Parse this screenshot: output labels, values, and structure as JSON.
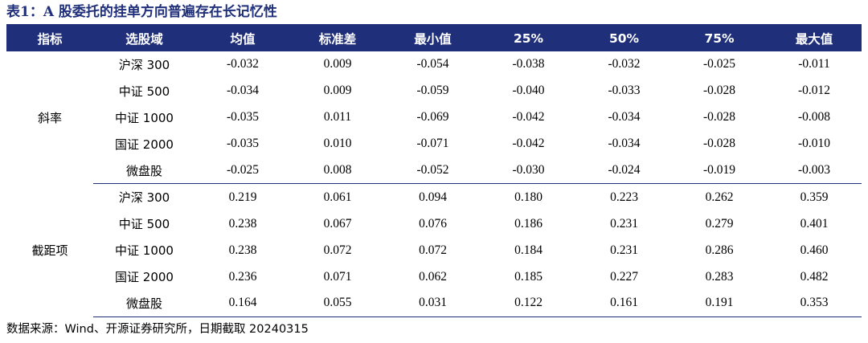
{
  "title": "表1：A 股委托的挂单方向普遍存在长记忆性",
  "columns": [
    "指标",
    "选股域",
    "均值",
    "标准差",
    "最小值",
    "25%",
    "50%",
    "75%",
    "最大值"
  ],
  "groups": [
    {
      "label": "斜率",
      "rows": [
        {
          "pool": "沪深 300",
          "values": [
            "-0.032",
            "0.009",
            "-0.054",
            "-0.038",
            "-0.032",
            "-0.025",
            "-0.011"
          ]
        },
        {
          "pool": "中证 500",
          "values": [
            "-0.034",
            "0.009",
            "-0.059",
            "-0.040",
            "-0.033",
            "-0.028",
            "-0.012"
          ]
        },
        {
          "pool": "中证 1000",
          "values": [
            "-0.035",
            "0.011",
            "-0.069",
            "-0.042",
            "-0.034",
            "-0.028",
            "-0.008"
          ]
        },
        {
          "pool": "国证 2000",
          "values": [
            "-0.035",
            "0.010",
            "-0.071",
            "-0.042",
            "-0.034",
            "-0.028",
            "-0.010"
          ]
        },
        {
          "pool": "微盘股",
          "values": [
            "-0.025",
            "0.008",
            "-0.052",
            "-0.030",
            "-0.024",
            "-0.019",
            "-0.003"
          ]
        }
      ]
    },
    {
      "label": "截距项",
      "rows": [
        {
          "pool": "沪深 300",
          "values": [
            "0.219",
            "0.061",
            "0.094",
            "0.180",
            "0.223",
            "0.262",
            "0.359"
          ]
        },
        {
          "pool": "中证 500",
          "values": [
            "0.238",
            "0.067",
            "0.076",
            "0.186",
            "0.231",
            "0.279",
            "0.401"
          ]
        },
        {
          "pool": "中证 1000",
          "values": [
            "0.238",
            "0.072",
            "0.072",
            "0.184",
            "0.231",
            "0.286",
            "0.460"
          ]
        },
        {
          "pool": "国证 2000",
          "values": [
            "0.236",
            "0.071",
            "0.062",
            "0.185",
            "0.227",
            "0.283",
            "0.482"
          ]
        },
        {
          "pool": "微盘股",
          "values": [
            "0.164",
            "0.055",
            "0.031",
            "0.122",
            "0.161",
            "0.191",
            "0.353"
          ]
        }
      ]
    }
  ],
  "source": "数据来源：Wind、开源证券研究所，日期截取 20240315",
  "colors": {
    "header_bg": "#1f2f7a",
    "header_text": "#ffffff"
  }
}
